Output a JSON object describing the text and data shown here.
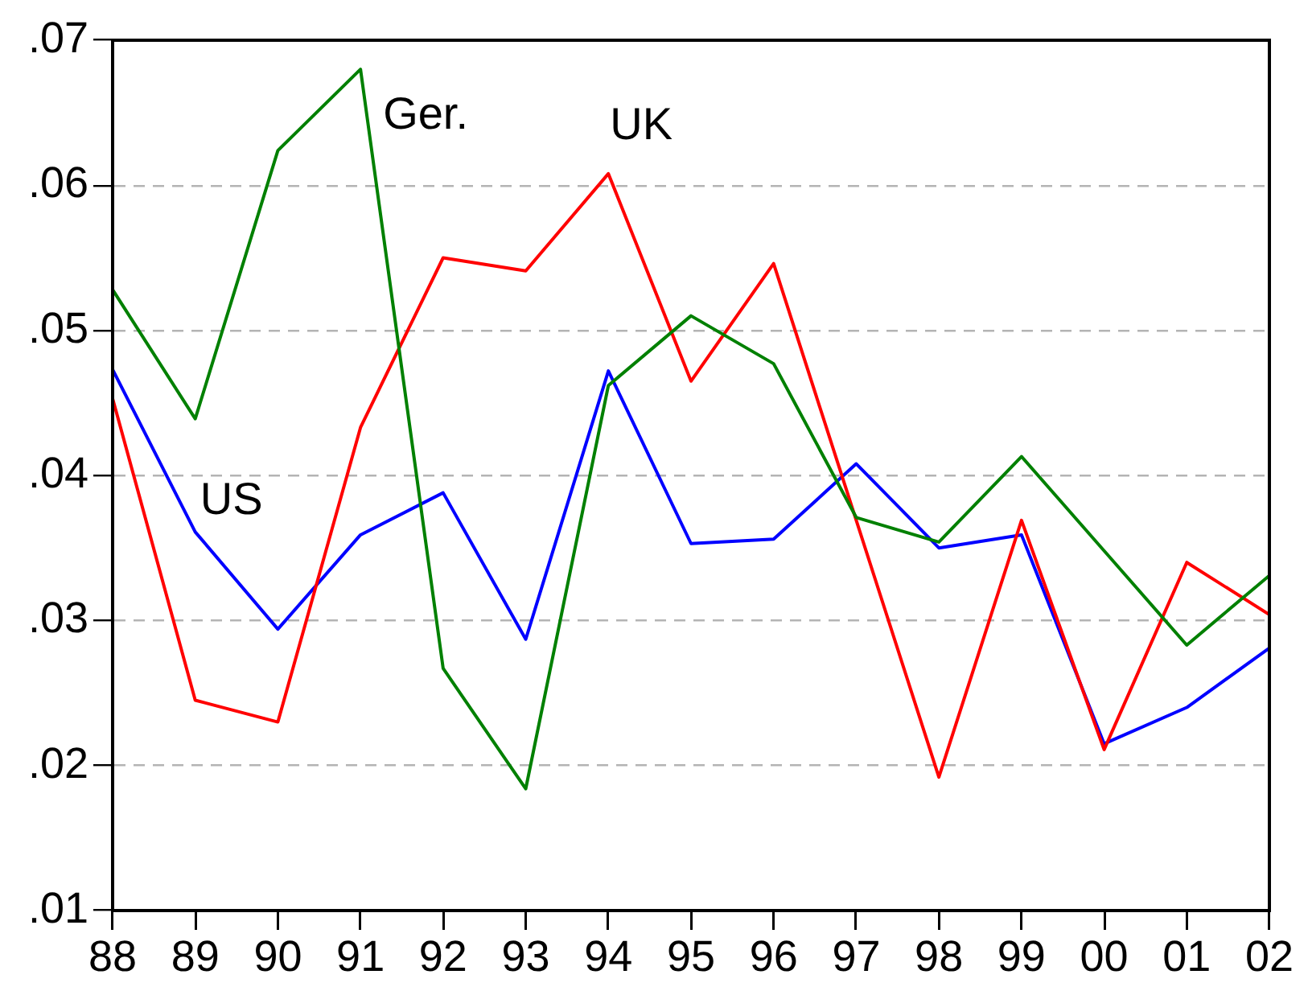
{
  "chart_data": {
    "type": "line",
    "categories": [
      "88",
      "89",
      "90",
      "91",
      "92",
      "93",
      "94",
      "95",
      "96",
      "97",
      "98",
      "99",
      "00",
      "01",
      "02"
    ],
    "series": [
      {
        "name": "Ger.",
        "color": "#008000",
        "values": [
          0.0528,
          0.0439,
          0.0624,
          0.068,
          0.0267,
          0.0184,
          0.0462,
          0.051,
          0.0477,
          0.0371,
          0.0354,
          0.0413,
          0.0348,
          0.0283,
          0.0331
        ]
      },
      {
        "name": "UK",
        "color": "#ff0000",
        "values": [
          0.0453,
          0.0245,
          0.023,
          0.0433,
          0.055,
          0.0541,
          0.0608,
          0.0465,
          0.0546,
          0.0369,
          0.0192,
          0.0369,
          0.0211,
          0.034,
          0.0304
        ]
      },
      {
        "name": "US",
        "color": "#0000ff",
        "values": [
          0.0473,
          0.0361,
          0.0294,
          0.0359,
          0.0388,
          0.0287,
          0.0472,
          0.0353,
          0.0356,
          0.0408,
          0.035,
          0.0359,
          0.0215,
          0.024,
          0.0281
        ]
      }
    ],
    "ylim": [
      0.01,
      0.07
    ],
    "yticks": [
      {
        "value": 0.01,
        "label": ".01"
      },
      {
        "value": 0.02,
        "label": ".02"
      },
      {
        "value": 0.03,
        "label": ".03"
      },
      {
        "value": 0.04,
        "label": ".04"
      },
      {
        "value": 0.05,
        "label": ".05"
      },
      {
        "value": 0.06,
        "label": ".06"
      },
      {
        "value": 0.07,
        "label": ".07"
      }
    ],
    "grid": "y"
  }
}
